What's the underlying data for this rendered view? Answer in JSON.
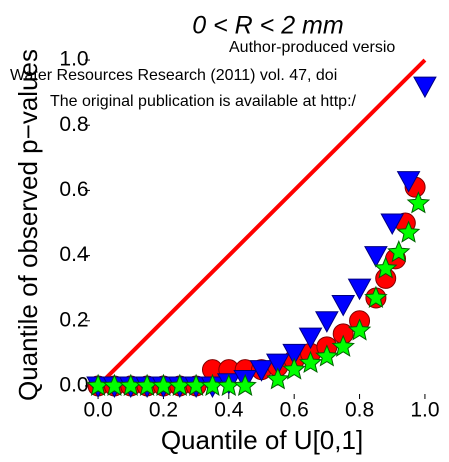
{
  "chart_data": {
    "type": "scatter",
    "title": "0 < R < 2 mm",
    "x_label": "Quantile of U[0,1]",
    "y_label": "Quantile of observed p−values",
    "annotations": [
      "Author-produced versio",
      "Water Resources Research (2011) vol. 47, doi",
      "The original publication is available at http:/"
    ],
    "xlim": [
      -0.04,
      1.04
    ],
    "ylim": [
      -0.04,
      1.04
    ],
    "xticks": [
      {
        "value": 0,
        "label": "0.0"
      },
      {
        "value": 0.2,
        "label": "0.2"
      },
      {
        "value": 0.4,
        "label": "0.4"
      },
      {
        "value": 0.6,
        "label": "0.6"
      },
      {
        "value": 0.8,
        "label": "0.8"
      },
      {
        "value": 1,
        "label": "1.0"
      }
    ],
    "yticks": [
      {
        "value": 0,
        "label": "0.0"
      },
      {
        "value": 0.2,
        "label": "0.2"
      },
      {
        "value": 0.4,
        "label": "0.4"
      },
      {
        "value": 0.6,
        "label": "0.6"
      },
      {
        "value": 0.8,
        "label": "0.8"
      },
      {
        "value": 1,
        "label": "1.0"
      }
    ],
    "reference_line": {
      "x": [
        0,
        1
      ],
      "values": [
        0,
        1
      ],
      "color": "#ff0000"
    },
    "series": [
      {
        "marker": "circle",
        "color": "#ff0000",
        "x": [
          0,
          0.05,
          0.1,
          0.15,
          0.2,
          0.25,
          0.3,
          0.35,
          0.4,
          0.45,
          0.5,
          0.55,
          0.6,
          0.65,
          0.7,
          0.75,
          0.8,
          0.85,
          0.88,
          0.91,
          0.94,
          0.97
        ],
        "values": [
          0,
          0,
          0,
          0,
          0,
          0,
          0,
          0.05,
          0.05,
          0.05,
          0.05,
          0.06,
          0.08,
          0.1,
          0.12,
          0.16,
          0.2,
          0.27,
          0.33,
          0.39,
          0.5,
          0.61
        ]
      },
      {
        "marker": "triangle-down",
        "color": "#0000ff",
        "x": [
          0,
          0.05,
          0.1,
          0.15,
          0.2,
          0.25,
          0.3,
          0.35,
          0.4,
          0.45,
          0.5,
          0.55,
          0.6,
          0.65,
          0.7,
          0.75,
          0.8,
          0.85,
          0.9,
          0.95,
          1.0
        ],
        "values": [
          0,
          0,
          0,
          0,
          0,
          0,
          0,
          0,
          0.01,
          0.02,
          0.05,
          0.07,
          0.1,
          0.15,
          0.2,
          0.25,
          0.3,
          0.4,
          0.5,
          0.63,
          0.92
        ]
      },
      {
        "marker": "star",
        "color": "#00ff00",
        "x": [
          0,
          0.05,
          0.1,
          0.15,
          0.2,
          0.25,
          0.3,
          0.35,
          0.4,
          0.45,
          0.55,
          0.6,
          0.65,
          0.7,
          0.75,
          0.8,
          0.85,
          0.88,
          0.92,
          0.95,
          0.98
        ],
        "values": [
          0,
          0,
          0,
          0,
          0,
          0,
          0,
          0,
          0,
          0,
          0.02,
          0.05,
          0.07,
          0.09,
          0.12,
          0.17,
          0.27,
          0.36,
          0.41,
          0.47,
          0.56
        ]
      }
    ]
  }
}
